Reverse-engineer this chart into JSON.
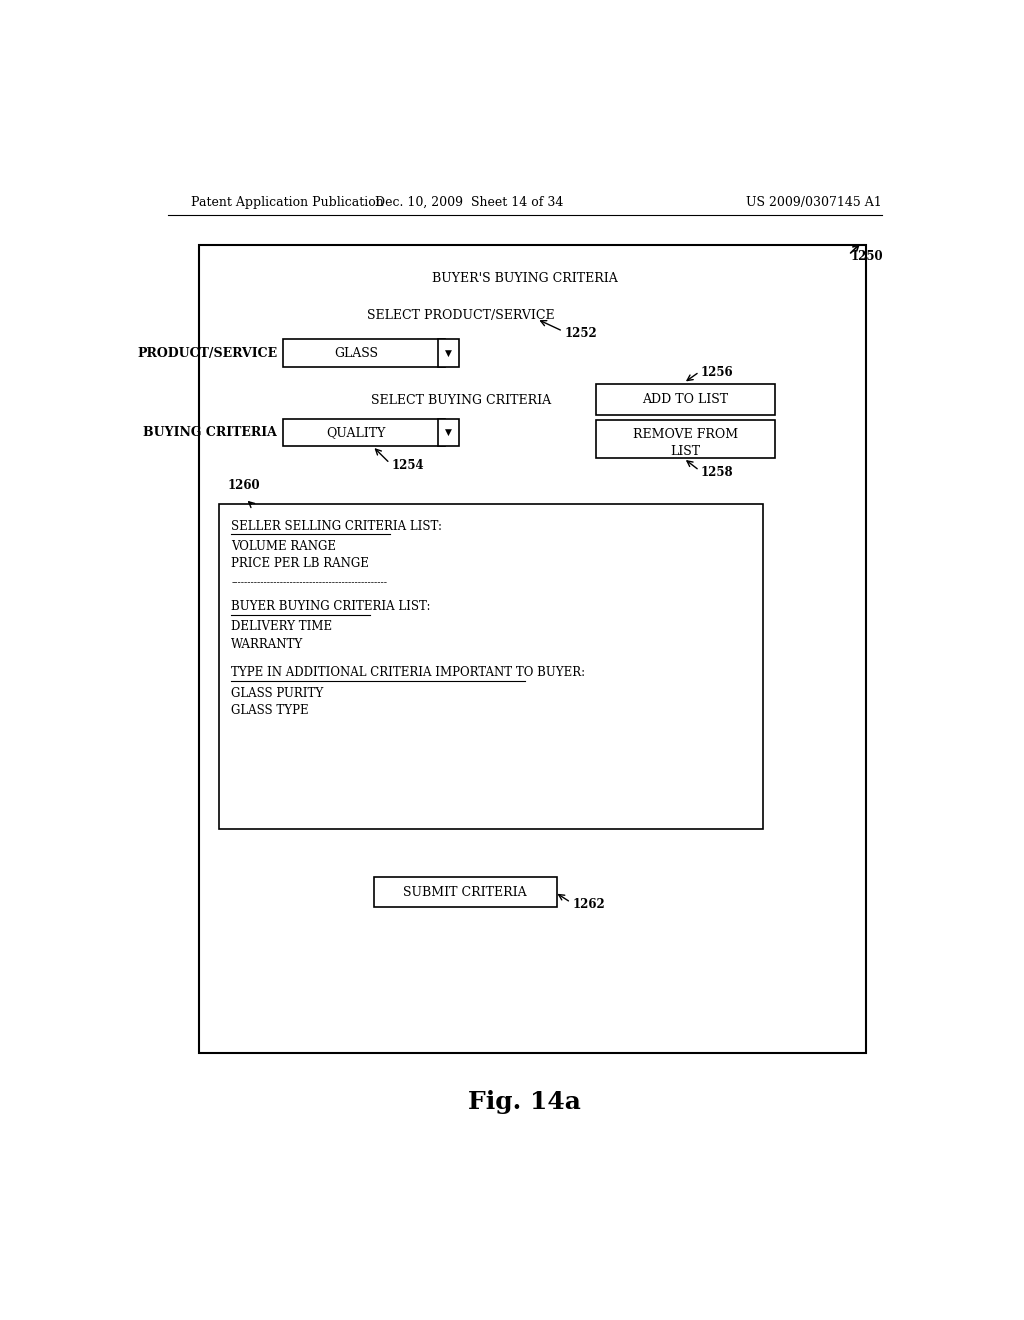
{
  "bg_color": "#ffffff",
  "header_left": "Patent Application Publication",
  "header_mid": "Dec. 10, 2009  Sheet 14 of 34",
  "header_right": "US 2009/0307145 A1",
  "fig_label": "Fig. 14a",
  "main_title": "BUYER'S BUYING CRITERIA",
  "label_1250": "1250",
  "label_1252": "1252",
  "label_1254": "1254",
  "label_1256": "1256",
  "label_1258": "1258",
  "label_1260": "1260",
  "label_1262": "1262",
  "text_select_product": "SELECT PRODUCT/SERVICE",
  "text_product_service": "PRODUCT/SERVICE",
  "text_glass": "GLASS",
  "text_select_buying": "SELECT BUYING CRITERIA",
  "text_buying_criteria": "BUYING CRITERIA",
  "text_quality": "QUALITY",
  "text_add_to_list": "ADD TO LIST",
  "text_remove_line1": "REMOVE FROM",
  "text_remove_line2": "LIST",
  "text_seller_list_title": "SELLER SELLING CRITERIA LIST:",
  "text_seller_item1": "VOLUME RANGE",
  "text_seller_item2": "PRICE PER LB RANGE",
  "text_dashes": "------------------------------------------------",
  "text_buyer_list_title": "BUYER BUYING CRITERIA LIST:",
  "text_buyer_item1": "DELIVERY TIME",
  "text_buyer_item2": "WARRANTY",
  "text_additional_title": "TYPE IN ADDITIONAL CRITERIA IMPORTANT TO BUYER:",
  "text_additional_item1": "GLASS PURITY",
  "text_additional_item2": "GLASS TYPE",
  "text_submit": "SUBMIT CRITERIA",
  "fontsize_header": 9,
  "fontsize_body": 9,
  "fontsize_small": 8.5,
  "fontsize_label": 8.5,
  "fontsize_fig": 18
}
